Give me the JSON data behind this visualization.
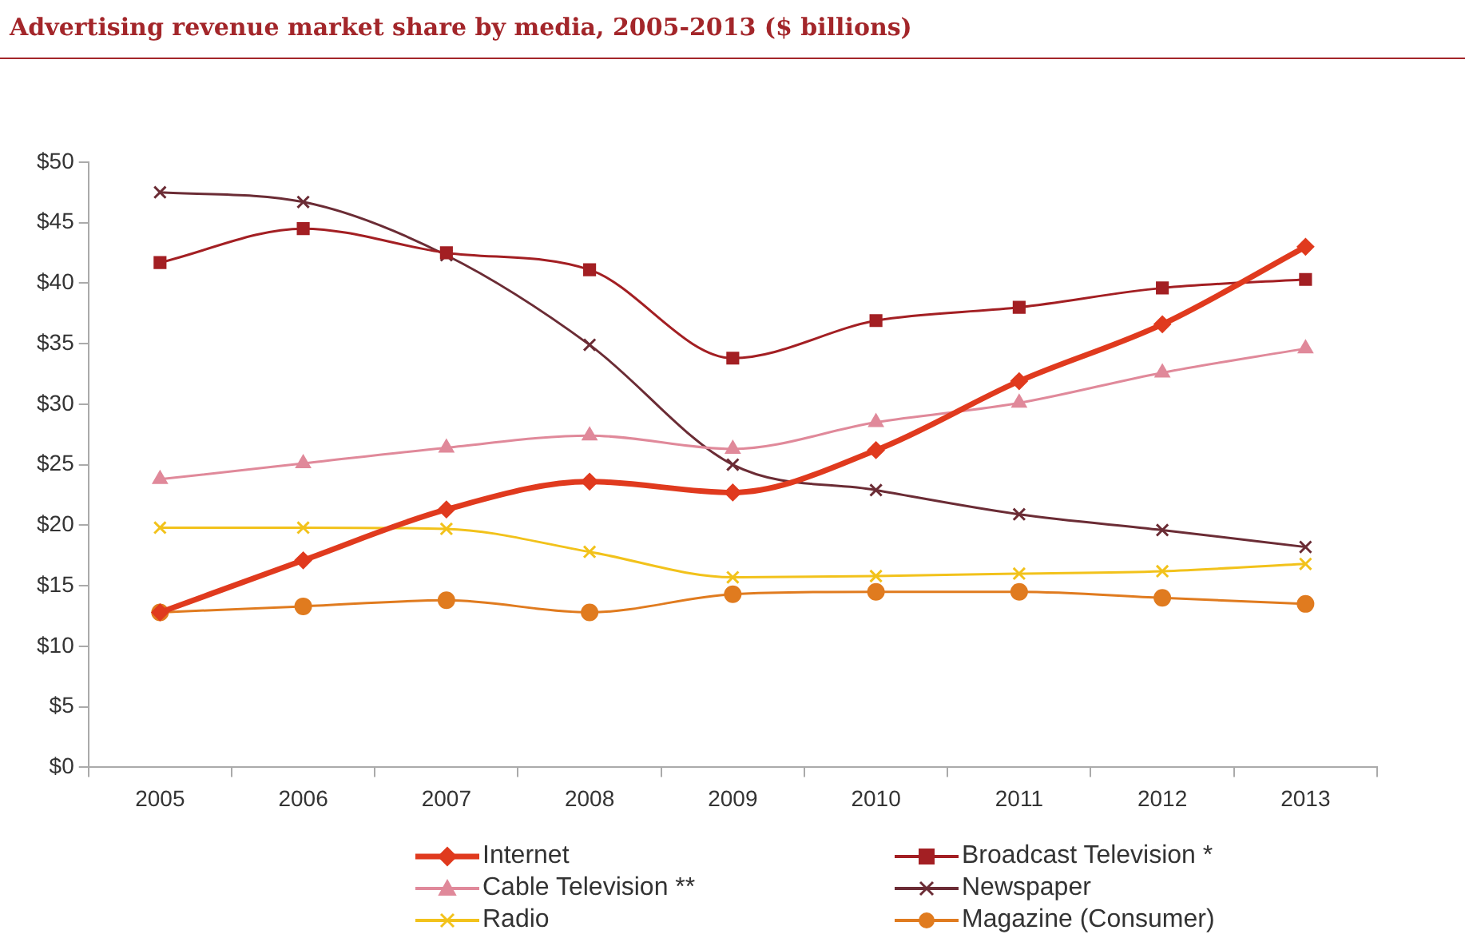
{
  "chart_data": {
    "type": "line",
    "title": "Advertising revenue market share by media, 2005-2013 ($ billions)",
    "categories": [
      "2005",
      "2006",
      "2007",
      "2008",
      "2009",
      "2010",
      "2011",
      "2012",
      "2013"
    ],
    "series": [
      {
        "name": "Internet",
        "color": "#e03a1e",
        "marker": "diamond",
        "values": [
          12.8,
          17.1,
          21.3,
          23.6,
          22.7,
          26.2,
          31.9,
          36.6,
          43.0
        ]
      },
      {
        "name": "Broadcast Television *",
        "color": "#a31f23",
        "marker": "square",
        "values": [
          41.7,
          44.5,
          42.5,
          41.1,
          33.8,
          36.9,
          38.0,
          39.6,
          40.3
        ]
      },
      {
        "name": "Cable Television **",
        "color": "#e0899a",
        "marker": "triangle",
        "values": [
          23.8,
          25.1,
          26.4,
          27.4,
          26.3,
          28.5,
          30.1,
          32.6,
          34.6
        ]
      },
      {
        "name": "Newspaper",
        "color": "#6b2c35",
        "marker": "cross",
        "values": [
          47.5,
          46.7,
          42.3,
          34.9,
          25.0,
          22.9,
          20.9,
          19.6,
          18.2
        ]
      },
      {
        "name": "Radio",
        "color": "#f2c21b",
        "marker": "cross",
        "values": [
          19.8,
          19.8,
          19.7,
          17.8,
          15.7,
          15.8,
          16.0,
          16.2,
          16.8
        ]
      },
      {
        "name": "Magazine (Consumer)",
        "color": "#e07b1f",
        "marker": "circle",
        "values": [
          12.8,
          13.3,
          13.8,
          12.8,
          14.3,
          14.5,
          14.5,
          14.0,
          13.5
        ]
      }
    ],
    "ylim": [
      0,
      50
    ],
    "yticks": [
      {
        "value": 0,
        "label": "$0"
      },
      {
        "value": 5,
        "label": "$5"
      },
      {
        "value": 10,
        "label": "$10"
      },
      {
        "value": 15,
        "label": "$15"
      },
      {
        "value": 20,
        "label": "$20"
      },
      {
        "value": 25,
        "label": "$25"
      },
      {
        "value": 30,
        "label": "$30"
      },
      {
        "value": 35,
        "label": "$35"
      },
      {
        "value": 40,
        "label": "$40"
      },
      {
        "value": 45,
        "label": "$45"
      },
      {
        "value": 50,
        "label": "$50"
      }
    ],
    "grid": false,
    "legend": "bottom"
  }
}
